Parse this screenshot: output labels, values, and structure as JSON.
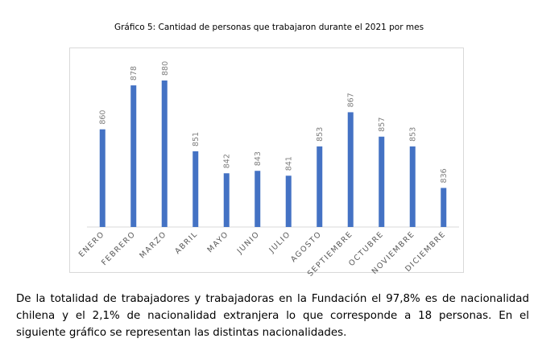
{
  "chart_data": {
    "type": "bar",
    "title": "Gráfico 5: Cantidad de personas que trabajaron durante el 2021 por mes",
    "xlabel": "",
    "ylabel": "",
    "categories": [
      "ENERO",
      "FEBRERO",
      "MARZO",
      "ABRIL",
      "MAYO",
      "JUNIO",
      "JULIO",
      "AGOSTO",
      "SEPTIEMBRE",
      "OCTUBRE",
      "NOVIEMBRE",
      "DICIEMBRE"
    ],
    "values": [
      860,
      878,
      880,
      851,
      842,
      843,
      841,
      853,
      867,
      857,
      853,
      836
    ],
    "ylim": [
      820,
      885
    ],
    "grid": false,
    "legend": "none",
    "colors": {
      "bar": "#4472c4",
      "data_label": "#7f7f7f",
      "axis_label": "#595959",
      "axis_line": "#d9d9d9"
    }
  },
  "paragraph": "De la totalidad de trabajadores y trabajadoras en la Fundación el 97,8% es de nacionalidad chilena y el 2,1% de nacionalidad extranjera lo que corresponde a 18 personas. En el siguiente gráfico se representan las distintas nacionalidades."
}
